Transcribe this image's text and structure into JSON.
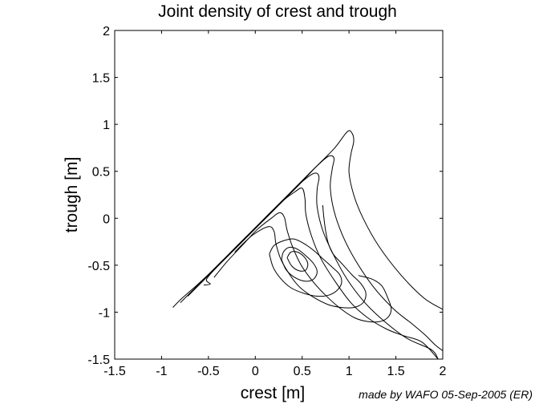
{
  "chart_data": {
    "type": "contour",
    "title": "Joint density of crest and trough",
    "xlabel": "crest [m]",
    "ylabel": "trough [m]",
    "xlim": [
      -1.5,
      2
    ],
    "ylim": [
      -1.5,
      2
    ],
    "xticks": [
      "-1.5",
      "-1",
      "-0.5",
      "0",
      "0.5",
      "1",
      "1.5",
      "2"
    ],
    "yticks": [
      "-1.5",
      "-1",
      "-0.5",
      "0",
      "0.5",
      "1",
      "1.5",
      "2"
    ],
    "grid": false,
    "contours": [
      {
        "level": 1,
        "points": [
          [
            -0.88,
            -0.95
          ],
          [
            -0.78,
            -0.85
          ],
          [
            -0.62,
            -0.71
          ],
          [
            -0.45,
            -0.55
          ],
          [
            -0.28,
            -0.38
          ],
          [
            -0.1,
            -0.2
          ],
          [
            0.08,
            -0.03
          ],
          [
            0.27,
            0.16
          ],
          [
            0.47,
            0.36
          ],
          [
            0.65,
            0.55
          ],
          [
            0.84,
            0.74
          ],
          [
            0.98,
            0.92
          ],
          [
            1.03,
            0.91
          ],
          [
            1.05,
            0.82
          ],
          [
            1.02,
            0.68
          ],
          [
            1.0,
            0.49
          ],
          [
            1.05,
            0.25
          ],
          [
            1.15,
            0.0
          ],
          [
            1.32,
            -0.3
          ],
          [
            1.55,
            -0.6
          ],
          [
            1.8,
            -0.85
          ],
          [
            2.0,
            -0.97
          ]
        ]
      },
      {
        "level": 2,
        "points": [
          [
            -0.8,
            -0.9
          ],
          [
            -0.64,
            -0.74
          ],
          [
            -0.46,
            -0.56
          ],
          [
            -0.28,
            -0.38
          ],
          [
            -0.1,
            -0.2
          ],
          [
            0.08,
            -0.02
          ],
          [
            0.27,
            0.17
          ],
          [
            0.47,
            0.37
          ],
          [
            0.64,
            0.54
          ],
          [
            0.78,
            0.66
          ],
          [
            0.84,
            0.64
          ],
          [
            0.82,
            0.52
          ],
          [
            0.8,
            0.33
          ],
          [
            0.84,
            0.08
          ],
          [
            0.93,
            -0.18
          ],
          [
            1.07,
            -0.45
          ],
          [
            1.26,
            -0.73
          ],
          [
            1.48,
            -0.97
          ],
          [
            1.68,
            -1.13
          ],
          [
            1.82,
            -1.25
          ],
          [
            1.92,
            -1.35
          ],
          [
            2.0,
            -1.41
          ]
        ]
      },
      {
        "level": 3,
        "points": [
          [
            -0.72,
            -0.83
          ],
          [
            -0.57,
            -0.68
          ],
          [
            -0.4,
            -0.51
          ],
          [
            -0.23,
            -0.34
          ],
          [
            -0.05,
            -0.16
          ],
          [
            0.13,
            0.02
          ],
          [
            0.32,
            0.21
          ],
          [
            0.5,
            0.39
          ],
          [
            0.63,
            0.48
          ],
          [
            0.68,
            0.44
          ],
          [
            0.66,
            0.31
          ],
          [
            0.66,
            0.12
          ],
          [
            0.72,
            -0.13
          ],
          [
            0.83,
            -0.38
          ],
          [
            0.98,
            -0.65
          ],
          [
            1.17,
            -0.9
          ],
          [
            1.38,
            -1.1
          ],
          [
            1.62,
            -1.28
          ],
          [
            1.88,
            -1.4
          ],
          [
            1.95,
            -1.5
          ]
        ]
      },
      {
        "level": 4,
        "points": [
          [
            -0.55,
            -0.71
          ],
          [
            -0.48,
            -0.7
          ],
          [
            -0.52,
            -0.65
          ],
          [
            -0.4,
            -0.51
          ],
          [
            -0.22,
            -0.33
          ],
          [
            -0.03,
            -0.14
          ],
          [
            0.14,
            0.04
          ],
          [
            0.3,
            0.19
          ],
          [
            0.42,
            0.28
          ],
          [
            0.5,
            0.32
          ],
          [
            0.53,
            0.21
          ],
          [
            0.54,
            0.04
          ],
          [
            0.6,
            -0.19
          ],
          [
            0.7,
            -0.43
          ],
          [
            0.85,
            -0.67
          ],
          [
            1.02,
            -0.9
          ],
          [
            1.2,
            -1.06
          ],
          [
            1.4,
            -1.18
          ],
          [
            1.58,
            -1.25
          ],
          [
            1.78,
            -1.32
          ],
          [
            1.95,
            -1.5
          ]
        ]
      },
      {
        "level": 5,
        "points": [
          [
            -0.44,
            -0.63
          ],
          [
            -0.3,
            -0.46
          ],
          [
            -0.14,
            -0.29
          ],
          [
            0.02,
            -0.12
          ],
          [
            0.17,
            0.0
          ],
          [
            0.26,
            0.06
          ],
          [
            0.31,
            0.01
          ],
          [
            0.34,
            -0.13
          ],
          [
            0.4,
            -0.31
          ],
          [
            0.49,
            -0.5
          ],
          [
            0.62,
            -0.68
          ],
          [
            0.77,
            -0.84
          ],
          [
            0.92,
            -0.97
          ],
          [
            1.06,
            -1.06
          ],
          [
            1.2,
            -1.1
          ],
          [
            1.33,
            -1.1
          ],
          [
            1.42,
            -1.05
          ],
          [
            1.45,
            -0.96
          ],
          [
            1.41,
            -0.84
          ],
          [
            1.35,
            -0.72
          ],
          [
            1.25,
            -0.65
          ],
          [
            1.1,
            -0.61
          ]
        ]
      },
      {
        "level": 6,
        "points": [
          [
            -0.22,
            -0.36
          ],
          [
            -0.03,
            -0.18
          ],
          [
            0.14,
            -0.09
          ],
          [
            0.2,
            -0.14
          ],
          [
            0.22,
            -0.27
          ],
          [
            0.27,
            -0.43
          ],
          [
            0.36,
            -0.59
          ],
          [
            0.47,
            -0.73
          ],
          [
            0.62,
            -0.84
          ],
          [
            0.78,
            -0.92
          ],
          [
            0.92,
            -0.95
          ],
          [
            1.05,
            -0.95
          ],
          [
            1.15,
            -0.9
          ],
          [
            1.18,
            -0.8
          ],
          [
            1.13,
            -0.7
          ],
          [
            1.03,
            -0.6
          ],
          [
            0.93,
            -0.49
          ],
          [
            0.83,
            -0.38
          ],
          [
            0.78,
            -0.27
          ],
          [
            0.75,
            -0.13
          ],
          [
            0.73,
            0.02
          ],
          [
            0.72,
            0.14
          ]
        ]
      },
      {
        "level": 7,
        "points": [
          [
            0.15,
            -0.38
          ],
          [
            0.19,
            -0.52
          ],
          [
            0.27,
            -0.64
          ],
          [
            0.38,
            -0.74
          ],
          [
            0.52,
            -0.8
          ],
          [
            0.66,
            -0.83
          ],
          [
            0.78,
            -0.82
          ],
          [
            0.87,
            -0.77
          ],
          [
            0.92,
            -0.69
          ],
          [
            0.9,
            -0.6
          ],
          [
            0.82,
            -0.52
          ],
          [
            0.72,
            -0.43
          ],
          [
            0.62,
            -0.34
          ],
          [
            0.52,
            -0.27
          ],
          [
            0.41,
            -0.22
          ],
          [
            0.3,
            -0.24
          ],
          [
            0.2,
            -0.29
          ],
          [
            0.15,
            -0.38
          ]
        ]
      },
      {
        "level": 8,
        "points": [
          [
            0.28,
            -0.44
          ],
          [
            0.33,
            -0.55
          ],
          [
            0.42,
            -0.63
          ],
          [
            0.53,
            -0.67
          ],
          [
            0.62,
            -0.65
          ],
          [
            0.66,
            -0.57
          ],
          [
            0.62,
            -0.48
          ],
          [
            0.54,
            -0.4
          ],
          [
            0.45,
            -0.33
          ],
          [
            0.36,
            -0.31
          ],
          [
            0.3,
            -0.36
          ],
          [
            0.28,
            -0.44
          ]
        ]
      },
      {
        "level": 9,
        "points": [
          [
            0.34,
            -0.42
          ],
          [
            0.39,
            -0.51
          ],
          [
            0.47,
            -0.56
          ],
          [
            0.54,
            -0.55
          ],
          [
            0.56,
            -0.48
          ],
          [
            0.52,
            -0.41
          ],
          [
            0.45,
            -0.36
          ],
          [
            0.38,
            -0.36
          ],
          [
            0.34,
            -0.42
          ]
        ]
      }
    ]
  },
  "footnote": "made by WAFO 05-Sep-2005 (ER)"
}
